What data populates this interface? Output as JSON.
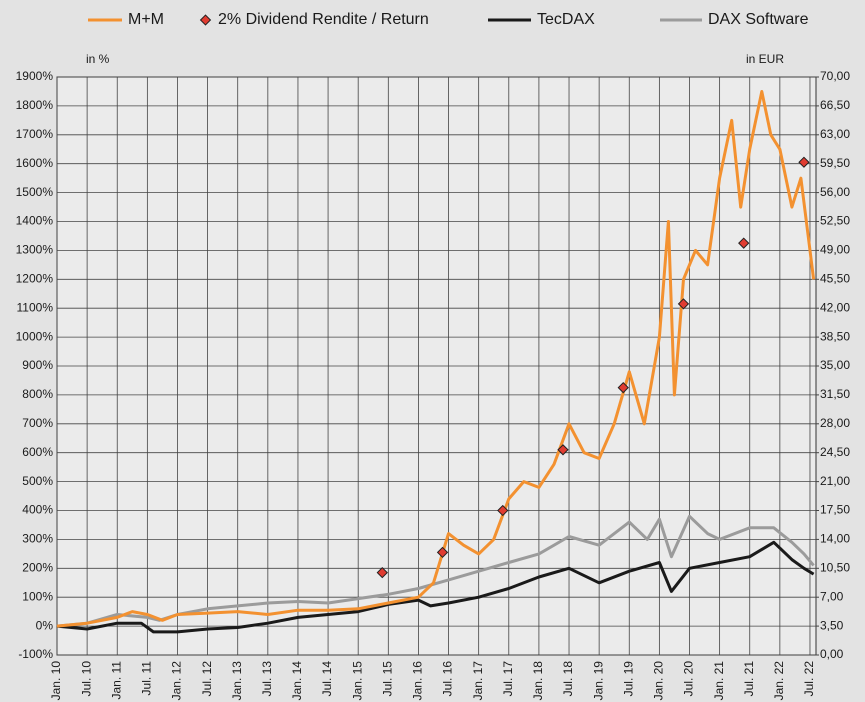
{
  "chart_data": {
    "type": "line",
    "legend": "top",
    "grid": true,
    "annotations": [
      "in %",
      "in EUR"
    ],
    "xlim": [
      2010,
      2022.6
    ],
    "xticks": [
      {
        "value": 2010,
        "label": "Jan. 10"
      },
      {
        "value": 2010.5,
        "label": "Jul. 10"
      },
      {
        "value": 2011,
        "label": "Jan. 11"
      },
      {
        "value": 2011.5,
        "label": "Jul. 11"
      },
      {
        "value": 2012,
        "label": "Jan. 12"
      },
      {
        "value": 2012.5,
        "label": "Jul. 12"
      },
      {
        "value": 2013,
        "label": "Jan. 13"
      },
      {
        "value": 2013.5,
        "label": "Jul. 13"
      },
      {
        "value": 2014,
        "label": "Jan. 14"
      },
      {
        "value": 2014.5,
        "label": "Jul. 14"
      },
      {
        "value": 2015,
        "label": "Jan. 15"
      },
      {
        "value": 2015.5,
        "label": "Jul. 15"
      },
      {
        "value": 2016,
        "label": "Jan. 16"
      },
      {
        "value": 2016.5,
        "label": "Jul. 16"
      },
      {
        "value": 2017,
        "label": "Jan. 17"
      },
      {
        "value": 2017.5,
        "label": "Jul. 17"
      },
      {
        "value": 2018,
        "label": "Jan. 18"
      },
      {
        "value": 2018.5,
        "label": "Jul. 18"
      },
      {
        "value": 2019,
        "label": "Jan. 19"
      },
      {
        "value": 2019.5,
        "label": "Jul. 19"
      },
      {
        "value": 2020,
        "label": "Jan. 20"
      },
      {
        "value": 2020.5,
        "label": "Jul. 20"
      },
      {
        "value": 2021,
        "label": "Jan. 21"
      },
      {
        "value": 2021.5,
        "label": "Jul. 21"
      },
      {
        "value": 2022,
        "label": "Jan. 22"
      },
      {
        "value": 2022.5,
        "label": "Jul. 22"
      }
    ],
    "ylim": [
      -100,
      1900
    ],
    "yticks": [
      {
        "value": -100,
        "label": "-100%"
      },
      {
        "value": 0,
        "label": "0%"
      },
      {
        "value": 100,
        "label": "100%"
      },
      {
        "value": 200,
        "label": "200%"
      },
      {
        "value": 300,
        "label": "300%"
      },
      {
        "value": 400,
        "label": "400%"
      },
      {
        "value": 500,
        "label": "500%"
      },
      {
        "value": 600,
        "label": "600%"
      },
      {
        "value": 700,
        "label": "700%"
      },
      {
        "value": 800,
        "label": "800%"
      },
      {
        "value": 900,
        "label": "900%"
      },
      {
        "value": 1000,
        "label": "1000%"
      },
      {
        "value": 1100,
        "label": "1100%"
      },
      {
        "value": 1200,
        "label": "1200%"
      },
      {
        "value": 1300,
        "label": "1300%"
      },
      {
        "value": 1400,
        "label": "1400%"
      },
      {
        "value": 1500,
        "label": "1500%"
      },
      {
        "value": 1600,
        "label": "1600%"
      },
      {
        "value": 1700,
        "label": "1700%"
      },
      {
        "value": 1800,
        "label": "1800%"
      },
      {
        "value": 1900,
        "label": "1900%"
      }
    ],
    "y2lim": [
      0,
      70
    ],
    "y2ticks": [
      {
        "value": 0,
        "label": "0,00"
      },
      {
        "value": 3.5,
        "label": "3,50"
      },
      {
        "value": 7,
        "label": "7,00"
      },
      {
        "value": 10.5,
        "label": "10,50"
      },
      {
        "value": 14,
        "label": "14,00"
      },
      {
        "value": 17.5,
        "label": "17,50"
      },
      {
        "value": 21,
        "label": "21,00"
      },
      {
        "value": 24.5,
        "label": "24,50"
      },
      {
        "value": 28,
        "label": "28,00"
      },
      {
        "value": 31.5,
        "label": "31,50"
      },
      {
        "value": 35,
        "label": "35,00"
      },
      {
        "value": 38.5,
        "label": "38,50"
      },
      {
        "value": 42,
        "label": "42,00"
      },
      {
        "value": 45.5,
        "label": "45,50"
      },
      {
        "value": 49,
        "label": "49,00"
      },
      {
        "value": 52.5,
        "label": "52,50"
      },
      {
        "value": 56,
        "label": "56,00"
      },
      {
        "value": 59.5,
        "label": "59,50"
      },
      {
        "value": 63,
        "label": "63,00"
      },
      {
        "value": 66.5,
        "label": "66,50"
      },
      {
        "value": 70,
        "label": "70,00"
      }
    ],
    "series": [
      {
        "name": "M+M",
        "color": "#f39130",
        "kind": "line",
        "x": [
          2010,
          2010.5,
          2011,
          2011.25,
          2011.5,
          2011.75,
          2012,
          2012.5,
          2013,
          2013.5,
          2014,
          2014.5,
          2015,
          2015.5,
          2016,
          2016.25,
          2016.5,
          2016.75,
          2017,
          2017.25,
          2017.5,
          2017.75,
          2018,
          2018.25,
          2018.5,
          2018.75,
          2019,
          2019.25,
          2019.5,
          2019.75,
          2020,
          2020.15,
          2020.25,
          2020.4,
          2020.6,
          2020.8,
          2021,
          2021.2,
          2021.35,
          2021.5,
          2021.7,
          2021.85,
          2022,
          2022.2,
          2022.35,
          2022.5,
          2022.56
        ],
        "values": [
          0,
          10,
          30,
          50,
          40,
          20,
          40,
          45,
          50,
          40,
          55,
          55,
          60,
          80,
          100,
          150,
          320,
          280,
          250,
          300,
          440,
          500,
          480,
          560,
          700,
          600,
          580,
          700,
          880,
          700,
          1000,
          1400,
          800,
          1200,
          1300,
          1250,
          1550,
          1750,
          1450,
          1650,
          1850,
          1700,
          1650,
          1450,
          1550,
          1300,
          1200
        ]
      },
      {
        "name": "2% Dividend Rendite / Return",
        "color": "#e03c31",
        "kind": "marker",
        "x": [
          2015.4,
          2016.4,
          2017.4,
          2018.4,
          2019.4,
          2020.4,
          2021.4,
          2022.4
        ],
        "values": [
          185,
          255,
          400,
          610,
          825,
          1115,
          1325,
          1605
        ]
      },
      {
        "name": "TecDAX",
        "color": "#1a1a1a",
        "kind": "line",
        "x": [
          2010,
          2010.5,
          2011,
          2011.4,
          2011.6,
          2012,
          2012.5,
          2013,
          2013.5,
          2014,
          2014.5,
          2015,
          2015.5,
          2016,
          2016.2,
          2016.5,
          2017,
          2017.5,
          2018,
          2018.5,
          2019,
          2019.5,
          2020,
          2020.2,
          2020.5,
          2021,
          2021.5,
          2021.9,
          2022.2,
          2022.4,
          2022.56
        ],
        "values": [
          0,
          -10,
          10,
          10,
          -20,
          -20,
          -10,
          -5,
          10,
          30,
          40,
          50,
          75,
          90,
          70,
          80,
          100,
          130,
          170,
          200,
          150,
          190,
          220,
          120,
          200,
          220,
          240,
          290,
          230,
          200,
          180
        ]
      },
      {
        "name": "DAX Software",
        "color": "#9b9b9b",
        "kind": "line",
        "x": [
          2010,
          2010.5,
          2011,
          2011.5,
          2011.7,
          2012,
          2012.5,
          2013,
          2013.5,
          2014,
          2014.5,
          2015,
          2015.5,
          2016,
          2016.5,
          2017,
          2017.5,
          2018,
          2018.5,
          2019,
          2019.5,
          2019.8,
          2020,
          2020.2,
          2020.5,
          2020.8,
          2021,
          2021.5,
          2021.9,
          2022.2,
          2022.4,
          2022.56
        ],
        "values": [
          0,
          10,
          40,
          30,
          20,
          40,
          60,
          70,
          80,
          85,
          80,
          95,
          110,
          130,
          160,
          190,
          220,
          250,
          310,
          280,
          360,
          300,
          370,
          240,
          380,
          320,
          300,
          340,
          340,
          290,
          250,
          210
        ]
      }
    ]
  }
}
